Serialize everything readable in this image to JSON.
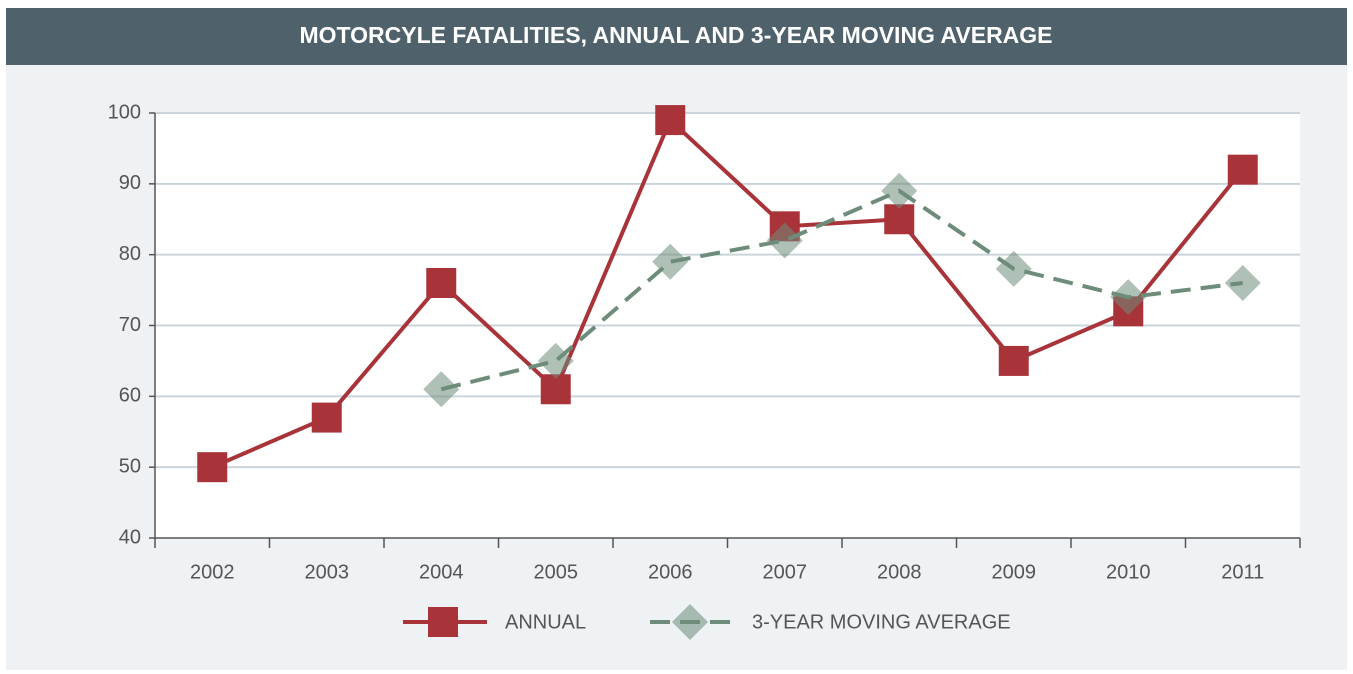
{
  "chart_data": {
    "type": "line",
    "title": "MOTORCYLE FATALITIES, ANNUAL AND 3-YEAR MOVING AVERAGE",
    "categories": [
      "2002",
      "2003",
      "2004",
      "2005",
      "2006",
      "2007",
      "2008",
      "2009",
      "2010",
      "2011"
    ],
    "series": [
      {
        "name": "ANNUAL",
        "color": "#a8343a",
        "marker": "square",
        "line_style": "solid",
        "values": [
          50,
          57,
          76,
          61,
          99,
          84,
          85,
          65,
          72,
          92
        ]
      },
      {
        "name": "3-YEAR MOVING AVERAGE",
        "color": "#6e8c7a",
        "marker": "diamond",
        "line_style": "dashed",
        "values": [
          null,
          null,
          61,
          65,
          79,
          82,
          89,
          78,
          74,
          76
        ]
      }
    ],
    "ylim": [
      40,
      100
    ],
    "yticks": [
      40,
      50,
      60,
      70,
      80,
      90,
      100
    ],
    "grid": true,
    "legend": "bottom"
  }
}
